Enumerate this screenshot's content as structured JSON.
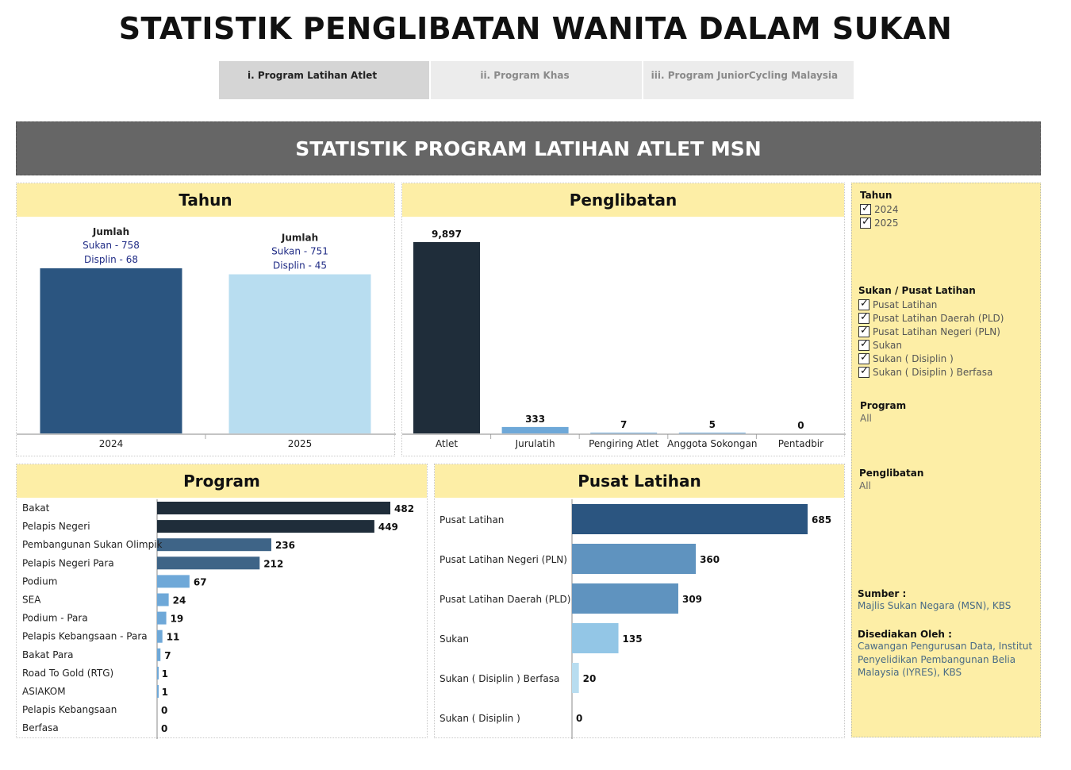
{
  "page": {
    "title": "STATISTIK PENGLIBATAN WANITA DALAM SUKAN",
    "tabs": [
      {
        "label": "i. Program Latihan Atlet",
        "active": true
      },
      {
        "label": "ii. Program Khas",
        "active": false
      },
      {
        "label": "iii. Program JuniorCycling Malaysia",
        "active": false
      }
    ],
    "section_title": "STATISTIK PROGRAM LATIHAN ATLET MSN"
  },
  "colors": {
    "header_bg": "#fdeea6",
    "banner_bg": "#666666",
    "bar_dark": "#1f2d3a",
    "bar_navy": "#2b5580",
    "bar_mid": "#3e6487",
    "bar_steel": "#5f93bf",
    "bar_light": "#6ea8d8",
    "bar_pale": "#b8ddf0",
    "bar_sky": "#93c6e6",
    "annotation_blue": "#1f2b85"
  },
  "tahun": {
    "header": "Tahun",
    "chart_data": {
      "type": "bar",
      "categories": [
        "2024",
        "2025"
      ],
      "values": [
        826,
        796
      ],
      "annotations": [
        {
          "title": "Jumlah",
          "line1": "Sukan - 758",
          "line2": "Displin - 68"
        },
        {
          "title": "Jumlah",
          "line1": "Sukan - 751",
          "line2": "Displin - 45"
        }
      ],
      "colors": [
        "#2b5580",
        "#b8ddf0"
      ]
    }
  },
  "penglibatan": {
    "header": "Penglibatan",
    "chart_data": {
      "type": "bar",
      "categories": [
        "Atlet",
        "Jurulatih",
        "Pengiring Atlet",
        "Anggota Sokongan",
        "Pentadbir"
      ],
      "values": [
        9897,
        333,
        7,
        5,
        0
      ],
      "labels": [
        "9,897",
        "333",
        "7",
        "5",
        "0"
      ],
      "colors": [
        "#1f2d3a",
        "#6ea8d8",
        "#6ea8d8",
        "#6ea8d8",
        "#6ea8d8"
      ]
    }
  },
  "program": {
    "header": "Program",
    "chart_data": {
      "type": "bar",
      "orientation": "horizontal",
      "categories": [
        "Bakat",
        "Pelapis Negeri",
        "Pembangunan Sukan Olimpik",
        "Pelapis Negeri Para",
        "Podium",
        "SEA",
        "Podium - Para",
        "Pelapis Kebangsaan - Para",
        "Bakat Para",
        "Road To Gold (RTG)",
        "ASIAKOM",
        "Pelapis Kebangsaan",
        "Berfasa"
      ],
      "values": [
        482,
        449,
        236,
        212,
        67,
        24,
        19,
        11,
        7,
        1,
        1,
        0,
        0
      ],
      "colors": [
        "#1f2d3a",
        "#1f2d3a",
        "#3e6487",
        "#3e6487",
        "#6ea8d8",
        "#6ea8d8",
        "#6ea8d8",
        "#6ea8d8",
        "#6ea8d8",
        "#6ea8d8",
        "#6ea8d8",
        "#6ea8d8",
        "#6ea8d8"
      ]
    }
  },
  "pusat_latihan": {
    "header": "Pusat Latihan",
    "chart_data": {
      "type": "bar",
      "orientation": "horizontal",
      "categories": [
        "Pusat Latihan",
        "Pusat Latihan Negeri (PLN)",
        "Pusat Latihan Daerah (PLD)",
        "Sukan",
        "Sukan ( Disiplin ) Berfasa",
        "Sukan ( Disiplin )"
      ],
      "values": [
        685,
        360,
        309,
        135,
        20,
        0
      ],
      "colors": [
        "#2b5580",
        "#5f93bf",
        "#5f93bf",
        "#93c6e6",
        "#b8ddf0",
        "#b8ddf0"
      ]
    }
  },
  "filters": {
    "tahun": {
      "title": "Tahun",
      "options": [
        "2024",
        "2025"
      ]
    },
    "sukan_pusat": {
      "title": "Sukan / Pusat Latihan",
      "options": [
        "Pusat Latihan",
        "Pusat Latihan Daerah (PLD)",
        "Pusat Latihan Negeri (PLN)",
        "Sukan",
        "Sukan ( Disiplin )",
        "Sukan ( Disiplin ) Berfasa"
      ]
    },
    "program": {
      "title": "Program",
      "value": "All"
    },
    "penglibatan": {
      "title": "Penglibatan",
      "value": "All"
    },
    "sumber": {
      "label": "Sumber :",
      "text": "Majlis Sukan Negara (MSN), KBS"
    },
    "disediakan": {
      "label": "Disediakan Oleh :",
      "lines": [
        "Cawangan Pengurusan Data, Institut",
        "Penyelidikan Pembangunan Belia",
        "Malaysia (IYRES), KBS"
      ]
    }
  }
}
